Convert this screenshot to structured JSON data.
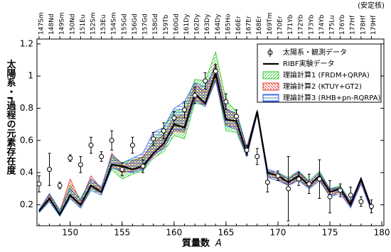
{
  "chart_data": {
    "type": "line",
    "y_label": "太陽系・r過程の元素存在度",
    "x_label": "質量数",
    "x_label_var": "A",
    "top_note": "(安定核)",
    "top_labels": [
      "147Sm",
      "148Nd",
      "149Sm",
      "150Nd",
      "151Eu",
      "152Sm",
      "153Eu",
      "154Sm",
      "155Gd",
      "156Gd",
      "157Gd",
      "158Gd",
      "159Tb",
      "160Gd",
      "161Dy",
      "162Dy",
      "163Dy",
      "164Dy",
      "165Ho",
      "166Er",
      "167Er",
      "168Er",
      "169Tm",
      "170Er",
      "171Yb",
      "172Yb",
      "173Yb",
      "174Yb",
      "175Lu",
      "176Yb",
      "177Hf",
      "178Hf",
      "179Hf"
    ],
    "x": [
      147,
      148,
      149,
      150,
      151,
      152,
      153,
      154,
      155,
      156,
      157,
      158,
      159,
      160,
      161,
      162,
      163,
      164,
      165,
      166,
      167,
      168,
      169,
      170,
      171,
      172,
      173,
      174,
      175,
      176,
      177,
      178,
      179
    ],
    "xlim": [
      146.8,
      180.2
    ],
    "xticks": [
      150,
      155,
      160,
      165,
      170,
      175,
      180
    ],
    "ylim": [
      0.07,
      1.23
    ],
    "yticks": [
      0.2,
      0.4,
      0.6,
      0.8,
      1.0,
      1.2
    ],
    "bands": [
      {
        "name": "理論計算1 (FRDM+QRPA)",
        "color": "#2ecc2e",
        "upper": [
          0.17,
          0.27,
          0.17,
          0.32,
          0.24,
          0.36,
          0.31,
          0.5,
          0.46,
          0.48,
          0.49,
          0.6,
          0.68,
          0.78,
          0.8,
          0.98,
          0.97,
          1.15,
          0.85,
          0.78,
          0.56,
          0.79,
          0.42,
          0.4,
          0.37,
          0.41,
          0.35,
          0.41,
          0.3,
          0.32,
          0.22,
          0.37,
          0.19
        ],
        "lower": [
          0.16,
          0.22,
          0.13,
          0.24,
          0.18,
          0.3,
          0.27,
          0.42,
          0.36,
          0.39,
          0.41,
          0.49,
          0.53,
          0.63,
          0.61,
          0.83,
          0.82,
          0.98,
          0.66,
          0.65,
          0.5,
          0.76,
          0.38,
          0.36,
          0.32,
          0.36,
          0.3,
          0.35,
          0.26,
          0.28,
          0.19,
          0.34,
          0.17
        ]
      },
      {
        "name": "理論計算2 (KTUY+GT2)",
        "color": "#e8322a",
        "upper": [
          0.17,
          0.26,
          0.16,
          0.36,
          0.22,
          0.38,
          0.3,
          0.52,
          0.44,
          0.47,
          0.5,
          0.58,
          0.64,
          0.74,
          0.76,
          0.95,
          0.9,
          1.08,
          0.8,
          0.76,
          0.56,
          0.79,
          0.41,
          0.39,
          0.36,
          0.4,
          0.34,
          0.4,
          0.29,
          0.31,
          0.21,
          0.37,
          0.19
        ],
        "lower": [
          0.16,
          0.23,
          0.14,
          0.25,
          0.19,
          0.31,
          0.27,
          0.44,
          0.4,
          0.41,
          0.43,
          0.5,
          0.56,
          0.66,
          0.65,
          0.86,
          0.82,
          0.99,
          0.7,
          0.68,
          0.51,
          0.76,
          0.38,
          0.36,
          0.32,
          0.36,
          0.31,
          0.36,
          0.26,
          0.28,
          0.19,
          0.34,
          0.17
        ]
      },
      {
        "name": "理論計算3 (RHB+pn-RQRPA)",
        "color": "#2a5ce8",
        "upper": [
          0.17,
          0.27,
          0.16,
          0.3,
          0.23,
          0.36,
          0.31,
          0.51,
          0.46,
          0.49,
          0.52,
          0.65,
          0.68,
          0.8,
          0.84,
          0.96,
          0.93,
          1.06,
          0.79,
          0.77,
          0.55,
          0.79,
          0.42,
          0.4,
          0.36,
          0.41,
          0.34,
          0.4,
          0.3,
          0.31,
          0.22,
          0.37,
          0.19
        ],
        "lower": [
          0.15,
          0.22,
          0.13,
          0.24,
          0.18,
          0.29,
          0.26,
          0.43,
          0.41,
          0.4,
          0.42,
          0.51,
          0.55,
          0.67,
          0.66,
          0.85,
          0.81,
          0.97,
          0.69,
          0.67,
          0.5,
          0.76,
          0.37,
          0.35,
          0.32,
          0.35,
          0.3,
          0.35,
          0.25,
          0.27,
          0.18,
          0.33,
          0.16
        ]
      }
    ],
    "series": [
      {
        "name": "RIBF実験データ",
        "color": "#000000",
        "values": [
          0.16,
          0.24,
          0.14,
          0.26,
          0.2,
          0.32,
          0.28,
          0.45,
          0.44,
          0.42,
          0.44,
          0.52,
          0.58,
          0.7,
          0.68,
          0.89,
          0.83,
          1.02,
          0.73,
          0.72,
          0.52,
          0.78,
          0.4,
          0.38,
          0.34,
          0.38,
          0.32,
          0.38,
          0.28,
          0.3,
          0.2,
          0.36,
          0.18
        ]
      },
      {
        "name": "太陽系・観測データ",
        "color": "#000000",
        "values": [
          0.33,
          0.42,
          0.32,
          0.49,
          0.45,
          0.57,
          0.5,
          0.6,
          0.42,
          0.57,
          0.44,
          0.61,
          0.66,
          0.74,
          0.79,
          0.88,
          0.97,
          1.03,
          0.84,
          0.75,
          0.54,
          0.5,
          0.34,
          0.38,
          0.3,
          0.36,
          0.33,
          0.36,
          0.25,
          0.29,
          0.26,
          0.22,
          0.19
        ],
        "errors": [
          0.05,
          0.1,
          0.02,
          0.02,
          0.05,
          0.05,
          0.03,
          0.06,
          0.04,
          0.05,
          0.04,
          0.04,
          0.05,
          0.04,
          0.05,
          0.05,
          0.05,
          0.04,
          0.05,
          0.04,
          0.03,
          0.05,
          0.06,
          0.03,
          0.2,
          0.04,
          0.06,
          0.12,
          0.1,
          0.04,
          0.05,
          0.03,
          0.04
        ]
      }
    ]
  }
}
